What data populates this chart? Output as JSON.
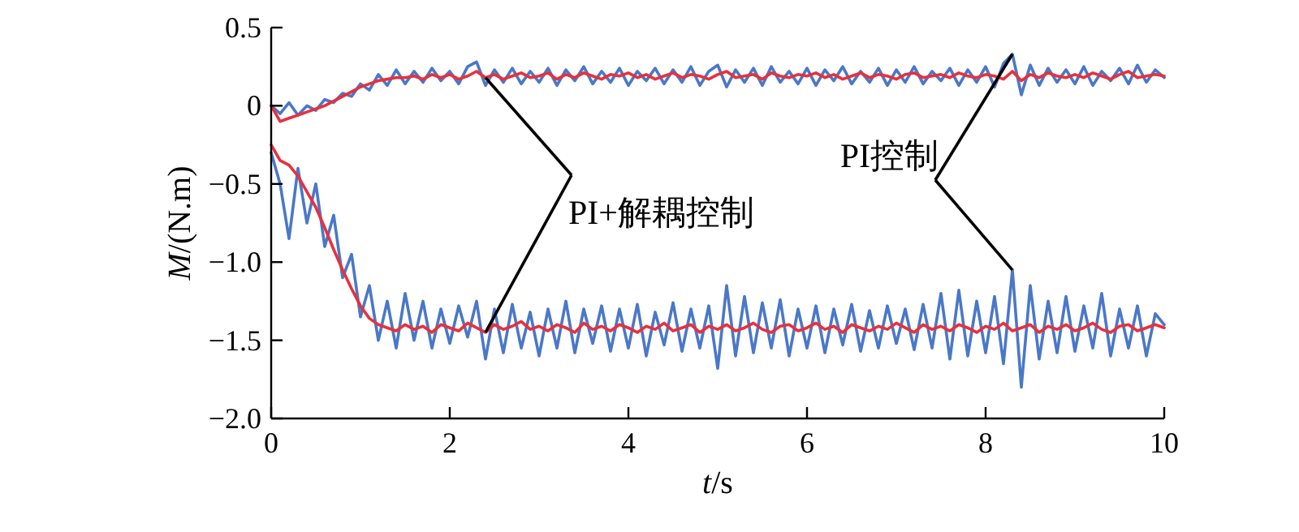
{
  "chart_data": {
    "type": "line",
    "xlabel": "t/s",
    "ylabel": "M/(N.m)",
    "x": [
      0,
      0.1,
      0.2,
      0.3,
      0.4,
      0.5,
      0.6,
      0.7,
      0.8,
      0.9,
      1,
      1.1,
      1.2,
      1.3,
      1.4,
      1.5,
      1.6,
      1.7,
      1.8,
      1.9,
      2,
      2.1,
      2.2,
      2.3,
      2.4,
      2.5,
      2.6,
      2.7,
      2.8,
      2.9,
      3,
      3.1,
      3.2,
      3.3,
      3.4,
      3.5,
      3.6,
      3.7,
      3.8,
      3.9,
      4,
      4.1,
      4.2,
      4.3,
      4.4,
      4.5,
      4.6,
      4.7,
      4.8,
      4.9,
      5,
      5.1,
      5.2,
      5.3,
      5.4,
      5.5,
      5.6,
      5.7,
      5.8,
      5.9,
      6,
      6.1,
      6.2,
      6.3,
      6.4,
      6.5,
      6.6,
      6.7,
      6.8,
      6.9,
      7,
      7.1,
      7.2,
      7.3,
      7.4,
      7.5,
      7.6,
      7.7,
      7.8,
      7.9,
      8,
      8.1,
      8.2,
      8.3,
      8.4,
      8.5,
      8.6,
      8.7,
      8.8,
      8.9,
      9,
      9.1,
      9.2,
      9.3,
      9.4,
      9.5,
      9.6,
      9.7,
      9.8,
      9.9,
      10
    ],
    "series": [
      {
        "name": "PI控制",
        "color": "#4a78c8",
        "values": [
          0.0,
          -0.05,
          0.02,
          -0.06,
          0.0,
          -0.03,
          0.04,
          0.02,
          0.08,
          0.06,
          0.14,
          0.1,
          0.2,
          0.13,
          0.23,
          0.14,
          0.22,
          0.15,
          0.24,
          0.16,
          0.22,
          0.14,
          0.25,
          0.28,
          0.13,
          0.23,
          0.15,
          0.24,
          0.14,
          0.22,
          0.15,
          0.24,
          0.13,
          0.23,
          0.16,
          0.25,
          0.14,
          0.22,
          0.15,
          0.24,
          0.13,
          0.22,
          0.16,
          0.24,
          0.14,
          0.23,
          0.15,
          0.25,
          0.13,
          0.22,
          0.26,
          0.12,
          0.23,
          0.15,
          0.24,
          0.13,
          0.25,
          0.15,
          0.22,
          0.14,
          0.24,
          0.13,
          0.23,
          0.16,
          0.25,
          0.14,
          0.22,
          0.15,
          0.24,
          0.13,
          0.23,
          0.15,
          0.25,
          0.14,
          0.22,
          0.16,
          0.24,
          0.13,
          0.23,
          0.15,
          0.25,
          0.12,
          0.27,
          0.33,
          0.07,
          0.26,
          0.13,
          0.24,
          0.15,
          0.23,
          0.14,
          0.25,
          0.13,
          0.22,
          0.16,
          0.24,
          0.14,
          0.26,
          0.15,
          0.23,
          0.18
        ]
      },
      {
        "color": "#4a78c8",
        "values": [
          -0.3,
          -0.5,
          -0.85,
          -0.4,
          -0.75,
          -0.5,
          -0.9,
          -0.7,
          -1.1,
          -0.95,
          -1.35,
          -1.15,
          -1.5,
          -1.25,
          -1.55,
          -1.2,
          -1.5,
          -1.25,
          -1.55,
          -1.3,
          -1.52,
          -1.28,
          -1.48,
          -1.25,
          -1.62,
          -1.3,
          -1.58,
          -1.27,
          -1.55,
          -1.32,
          -1.6,
          -1.3,
          -1.55,
          -1.25,
          -1.58,
          -1.3,
          -1.52,
          -1.28,
          -1.57,
          -1.3,
          -1.55,
          -1.27,
          -1.6,
          -1.32,
          -1.53,
          -1.26,
          -1.57,
          -1.3,
          -1.55,
          -1.28,
          -1.68,
          -1.15,
          -1.6,
          -1.22,
          -1.58,
          -1.26,
          -1.55,
          -1.24,
          -1.6,
          -1.3,
          -1.55,
          -1.28,
          -1.58,
          -1.3,
          -1.53,
          -1.27,
          -1.57,
          -1.31,
          -1.55,
          -1.28,
          -1.52,
          -1.3,
          -1.56,
          -1.27,
          -1.55,
          -1.2,
          -1.62,
          -1.18,
          -1.6,
          -1.25,
          -1.58,
          -1.22,
          -1.65,
          -1.05,
          -1.8,
          -1.15,
          -1.62,
          -1.25,
          -1.58,
          -1.22,
          -1.57,
          -1.28,
          -1.55,
          -1.2,
          -1.6,
          -1.3,
          -1.55,
          -1.28,
          -1.6,
          -1.33,
          -1.4
        ]
      },
      {
        "name": "PI+解耦控制",
        "color": "#e8303c",
        "values": [
          0.0,
          -0.1,
          -0.08,
          -0.06,
          -0.04,
          -0.02,
          0.0,
          0.03,
          0.06,
          0.09,
          0.12,
          0.14,
          0.16,
          0.17,
          0.18,
          0.18,
          0.19,
          0.17,
          0.2,
          0.18,
          0.2,
          0.17,
          0.19,
          0.22,
          0.18,
          0.2,
          0.17,
          0.19,
          0.21,
          0.18,
          0.19,
          0.21,
          0.17,
          0.2,
          0.18,
          0.21,
          0.19,
          0.17,
          0.2,
          0.19,
          0.21,
          0.18,
          0.2,
          0.17,
          0.19,
          0.21,
          0.18,
          0.2,
          0.19,
          0.17,
          0.2,
          0.22,
          0.18,
          0.19,
          0.2,
          0.17,
          0.21,
          0.19,
          0.18,
          0.2,
          0.19,
          0.21,
          0.18,
          0.2,
          0.17,
          0.19,
          0.21,
          0.18,
          0.2,
          0.19,
          0.17,
          0.2,
          0.21,
          0.18,
          0.19,
          0.2,
          0.18,
          0.21,
          0.19,
          0.18,
          0.2,
          0.19,
          0.17,
          0.22,
          0.16,
          0.2,
          0.18,
          0.21,
          0.19,
          0.18,
          0.2,
          0.18,
          0.21,
          0.19,
          0.17,
          0.2,
          0.22,
          0.18,
          0.19,
          0.2,
          0.19
        ]
      },
      {
        "color": "#e8303c",
        "values": [
          -0.25,
          -0.35,
          -0.38,
          -0.45,
          -0.55,
          -0.65,
          -0.78,
          -0.92,
          -1.05,
          -1.17,
          -1.28,
          -1.36,
          -1.4,
          -1.42,
          -1.44,
          -1.4,
          -1.43,
          -1.41,
          -1.45,
          -1.4,
          -1.42,
          -1.44,
          -1.39,
          -1.42,
          -1.45,
          -1.4,
          -1.43,
          -1.41,
          -1.38,
          -1.43,
          -1.41,
          -1.44,
          -1.4,
          -1.42,
          -1.45,
          -1.39,
          -1.43,
          -1.41,
          -1.44,
          -1.4,
          -1.42,
          -1.45,
          -1.41,
          -1.43,
          -1.39,
          -1.44,
          -1.42,
          -1.4,
          -1.45,
          -1.41,
          -1.43,
          -1.4,
          -1.44,
          -1.42,
          -1.39,
          -1.43,
          -1.45,
          -1.41,
          -1.4,
          -1.44,
          -1.42,
          -1.39,
          -1.43,
          -1.41,
          -1.45,
          -1.4,
          -1.42,
          -1.44,
          -1.41,
          -1.43,
          -1.39,
          -1.42,
          -1.45,
          -1.4,
          -1.43,
          -1.41,
          -1.44,
          -1.4,
          -1.42,
          -1.45,
          -1.41,
          -1.43,
          -1.39,
          -1.44,
          -1.42,
          -1.4,
          -1.45,
          -1.41,
          -1.43,
          -1.4,
          -1.44,
          -1.42,
          -1.39,
          -1.43,
          -1.45,
          -1.41,
          -1.4,
          -1.44,
          -1.42,
          -1.4,
          -1.42
        ]
      }
    ],
    "xlim": [
      0,
      10
    ],
    "xticks": [
      0,
      2,
      4,
      6,
      8,
      10
    ],
    "ylim": [
      -2.0,
      0.5
    ],
    "yticks": [
      {
        "value": 0.5,
        "label": "0.5"
      },
      0,
      {
        "value": -0.5,
        "label": "−0.5"
      },
      {
        "value": -1.0,
        "label": "−1.0"
      },
      {
        "value": -1.5,
        "label": "−1.5"
      },
      {
        "value": -2.0,
        "label": "−2.0"
      }
    ],
    "grid": false,
    "legend": false,
    "marker": "none",
    "line_style": "solid"
  }
}
